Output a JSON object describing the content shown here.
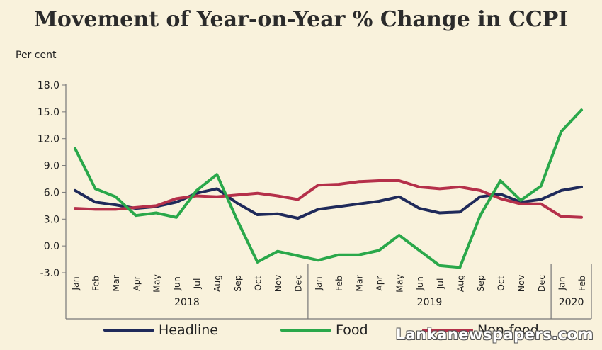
{
  "chart_data": {
    "type": "line",
    "title": "Movement of Year-on-Year % Change in CCPI",
    "ylabel": "Per cent",
    "xlabel": "",
    "ylim": [
      -3.0,
      18.0
    ],
    "yticks": [
      "18.0",
      "15.0",
      "12.0",
      "9.0",
      "6.0",
      "3.0",
      "0.0",
      "-3.0"
    ],
    "ytick_values": [
      18,
      15,
      12,
      9,
      6,
      3,
      0,
      -3
    ],
    "grid": false,
    "legend_position": "bottom",
    "categories": [
      "Jan",
      "Feb",
      "Mar",
      "Apr",
      "May",
      "Jun",
      "Jul",
      "Aug",
      "Sep",
      "Oct",
      "Nov",
      "Dec",
      "Jan",
      "Feb",
      "Mar",
      "Apr",
      "May",
      "Jun",
      "Jul",
      "Aug",
      "Sep",
      "Oct",
      "Nov",
      "Dec",
      "Jan",
      "Feb"
    ],
    "year_groups": [
      {
        "label": "2018",
        "start": 0,
        "end": 11
      },
      {
        "label": "2019",
        "start": 12,
        "end": 23
      },
      {
        "label": "2020",
        "start": 24,
        "end": 25
      }
    ],
    "series": [
      {
        "name": "Headline",
        "color": "#1f2a5a",
        "values": [
          6.2,
          4.9,
          4.6,
          4.2,
          4.4,
          4.9,
          5.9,
          6.4,
          4.8,
          3.5,
          3.6,
          3.1,
          4.1,
          4.4,
          4.7,
          5.0,
          5.5,
          4.2,
          3.7,
          3.8,
          5.5,
          5.8,
          4.9,
          5.2,
          6.2,
          6.6
        ]
      },
      {
        "name": "Food",
        "color": "#2aa84a",
        "values": [
          10.9,
          6.4,
          5.5,
          3.4,
          3.7,
          3.2,
          6.2,
          8.0,
          2.9,
          -1.8,
          -0.6,
          -1.1,
          -1.6,
          -1.0,
          -1.0,
          -0.5,
          1.2,
          -0.5,
          -2.2,
          -2.4,
          3.4,
          7.3,
          5.1,
          6.7,
          12.8,
          15.2
        ]
      },
      {
        "name": "Non-food",
        "color": "#b5304a",
        "values": [
          4.2,
          4.1,
          4.1,
          4.3,
          4.5,
          5.3,
          5.6,
          5.5,
          5.7,
          5.9,
          5.6,
          5.2,
          6.8,
          6.9,
          7.2,
          7.3,
          7.3,
          6.6,
          6.4,
          6.6,
          6.2,
          5.3,
          4.7,
          4.7,
          3.3,
          3.2
        ]
      }
    ]
  },
  "watermark": "Lankanewspapers.com"
}
